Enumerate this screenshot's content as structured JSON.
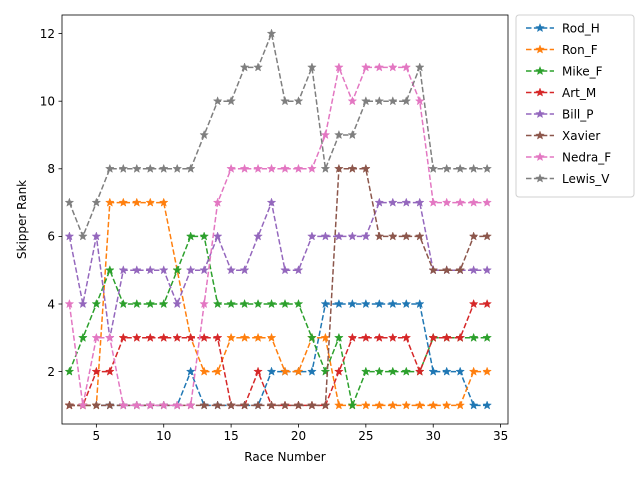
{
  "chart_data": {
    "type": "line",
    "title": "",
    "xlabel": "Race Number",
    "ylabel": "Skipper Rank",
    "xlim": [
      2.45,
      35.55
    ],
    "ylim": [
      0.45,
      12.55
    ],
    "xticks": [
      5,
      10,
      15,
      20,
      25,
      30,
      35
    ],
    "yticks": [
      2,
      4,
      6,
      8,
      10,
      12
    ],
    "grid": false,
    "legend_position": "outside-top-right",
    "marker": "star",
    "line_style": "dashed",
    "x": [
      3,
      4,
      5,
      6,
      7,
      8,
      9,
      10,
      11,
      12,
      13,
      14,
      15,
      16,
      17,
      18,
      19,
      20,
      21,
      22,
      23,
      24,
      25,
      26,
      27,
      28,
      29,
      30,
      31,
      32,
      33,
      34
    ],
    "series": [
      {
        "name": "Rod_H",
        "color": "#1f77b4",
        "values": [
          1,
          1,
          1,
          1,
          1,
          1,
          1,
          1,
          1,
          2,
          1,
          1,
          1,
          1,
          1,
          2,
          2,
          2,
          2,
          4,
          4,
          4,
          4,
          4,
          4,
          4,
          4,
          2,
          2,
          2,
          1,
          1
        ]
      },
      {
        "name": "Ron_F",
        "color": "#ff7f0e",
        "values": [
          1,
          1,
          1,
          7,
          7,
          7,
          7,
          7,
          5,
          3,
          2,
          2,
          3,
          3,
          3,
          3,
          2,
          2,
          3,
          3,
          1,
          1,
          1,
          1,
          1,
          1,
          1,
          1,
          1,
          1,
          2,
          2
        ]
      },
      {
        "name": "Mike_F",
        "color": "#2ca02c",
        "values": [
          2,
          3,
          4,
          5,
          4,
          4,
          4,
          4,
          5,
          6,
          6,
          4,
          4,
          4,
          4,
          4,
          4,
          4,
          3,
          2,
          3,
          1,
          2,
          2,
          2,
          2,
          2,
          3,
          3,
          3,
          3,
          3
        ]
      },
      {
        "name": "Art_M",
        "color": "#d62728",
        "values": [
          1,
          1,
          2,
          2,
          3,
          3,
          3,
          3,
          3,
          3,
          3,
          3,
          1,
          1,
          2,
          1,
          1,
          1,
          1,
          1,
          2,
          3,
          3,
          3,
          3,
          3,
          2,
          3,
          3,
          3,
          4,
          4
        ]
      },
      {
        "name": "Bill_P",
        "color": "#9467bd",
        "values": [
          6,
          4,
          6,
          3,
          5,
          5,
          5,
          5,
          4,
          5,
          5,
          6,
          5,
          5,
          6,
          7,
          5,
          5,
          6,
          6,
          6,
          6,
          6,
          7,
          7,
          7,
          7,
          5,
          5,
          5,
          5,
          5
        ]
      },
      {
        "name": "Xavier",
        "color": "#8c564b",
        "values": [
          1,
          1,
          1,
          1,
          1,
          1,
          1,
          1,
          1,
          1,
          1,
          1,
          1,
          1,
          1,
          1,
          1,
          1,
          1,
          1,
          8,
          8,
          8,
          6,
          6,
          6,
          6,
          5,
          5,
          5,
          6,
          6
        ]
      },
      {
        "name": "Nedra_F",
        "color": "#e377c2",
        "values": [
          4,
          1,
          3,
          3,
          1,
          1,
          1,
          1,
          1,
          1,
          4,
          7,
          8,
          8,
          8,
          8,
          8,
          8,
          8,
          9,
          11,
          10,
          11,
          11,
          11,
          11,
          10,
          7,
          7,
          7,
          7,
          7
        ]
      },
      {
        "name": "Lewis_V",
        "color": "#7f7f7f",
        "values": [
          7,
          6,
          7,
          8,
          8,
          8,
          8,
          8,
          8,
          8,
          9,
          10,
          10,
          11,
          11,
          12,
          10,
          10,
          11,
          8,
          9,
          9,
          10,
          10,
          10,
          10,
          11,
          8,
          8,
          8,
          8,
          8
        ]
      }
    ]
  }
}
